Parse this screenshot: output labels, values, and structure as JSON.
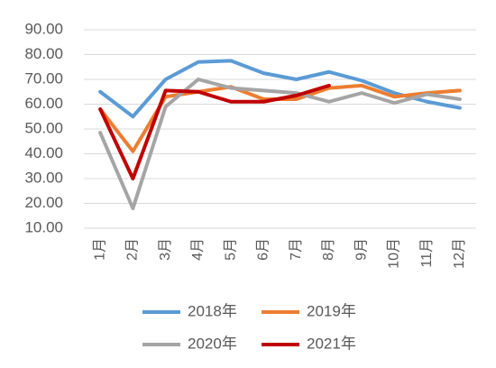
{
  "chart_data": {
    "type": "line",
    "categories": [
      "1月",
      "2月",
      "3月",
      "4月",
      "5月",
      "6月",
      "7月",
      "8月",
      "9月",
      "10月",
      "11月",
      "12月"
    ],
    "series": [
      {
        "name": "2018年",
        "color": "#5b9bd5",
        "values": [
          65,
          55,
          70,
          77,
          77.5,
          72.5,
          70,
          73,
          69.5,
          64.5,
          61,
          58.5
        ]
      },
      {
        "name": "2019年",
        "color": "#ed7d31",
        "values": [
          58,
          41,
          63,
          65,
          67,
          62,
          62,
          66.5,
          67.5,
          63,
          64.5,
          65.5
        ]
      },
      {
        "name": "2020年",
        "color": "#a5a5a5",
        "values": [
          48.5,
          18,
          59,
          70,
          66.5,
          65.5,
          64.5,
          61,
          64.5,
          60.5,
          64,
          62
        ]
      },
      {
        "name": "2021年",
        "color": "#c00000",
        "values": [
          58,
          30,
          65.5,
          65,
          61,
          61,
          63.5,
          67.5,
          null,
          null,
          null,
          null
        ]
      }
    ],
    "ylim": [
      10,
      90
    ],
    "yticks": [
      {
        "value": 10,
        "label": "10.00"
      },
      {
        "value": 20,
        "label": "20.00"
      },
      {
        "value": 30,
        "label": "30.00"
      },
      {
        "value": 40,
        "label": "40.00"
      },
      {
        "value": 50,
        "label": "50.00"
      },
      {
        "value": 60,
        "label": "60.00"
      },
      {
        "value": 70,
        "label": "70.00"
      },
      {
        "value": 80,
        "label": "80.00"
      },
      {
        "value": 90,
        "label": "90.00"
      }
    ],
    "grid": true,
    "legend": "bottom"
  }
}
